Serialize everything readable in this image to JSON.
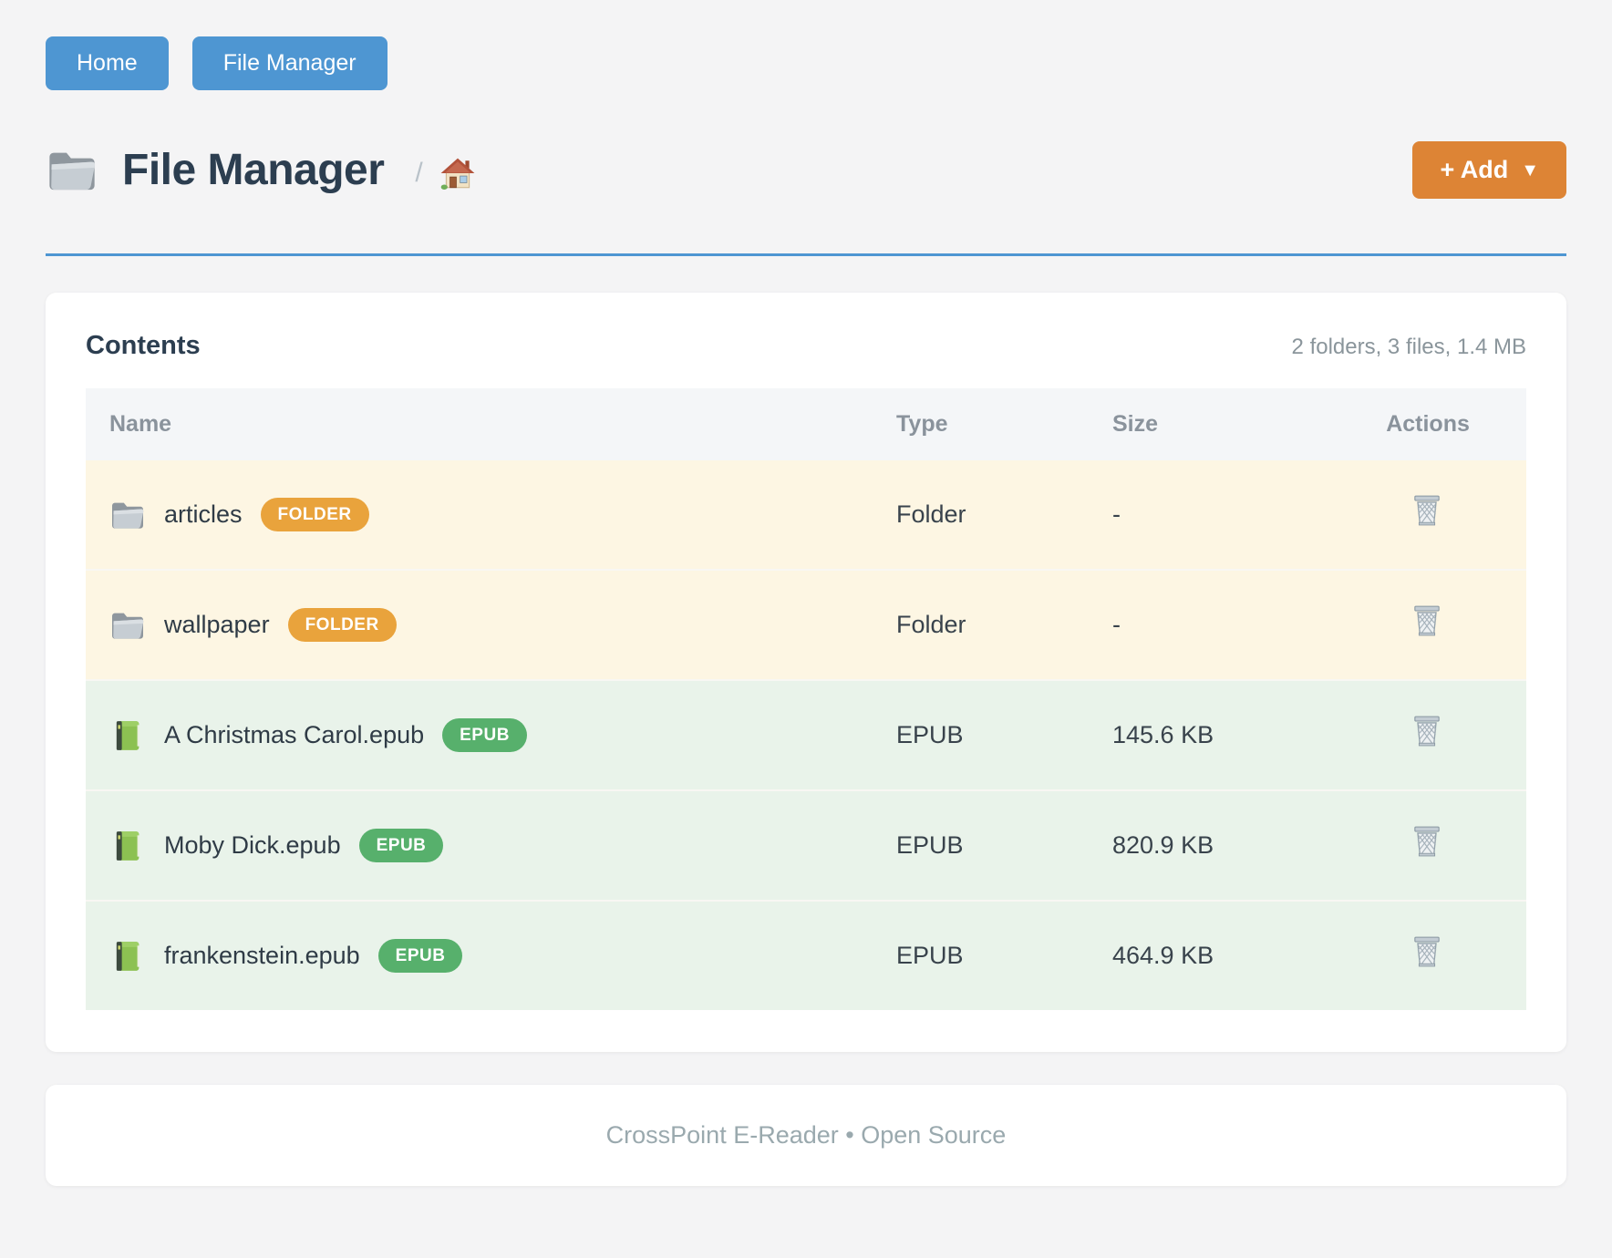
{
  "nav": {
    "items": [
      {
        "label": "Home"
      },
      {
        "label": "File Manager"
      }
    ]
  },
  "header": {
    "title": "File Manager",
    "breadcrumb_separator": "/",
    "add_button": {
      "label": "+ Add",
      "caret": "▼"
    }
  },
  "contents": {
    "title": "Contents",
    "summary": "2 folders, 3 files, 1.4 MB",
    "columns": [
      "Name",
      "Type",
      "Size",
      "Actions"
    ],
    "rows": [
      {
        "name": "articles",
        "badge": "FOLDER",
        "type": "Folder",
        "size": "-",
        "kind": "folder"
      },
      {
        "name": "wallpaper",
        "badge": "FOLDER",
        "type": "Folder",
        "size": "-",
        "kind": "folder"
      },
      {
        "name": "A Christmas Carol.epub",
        "badge": "EPUB",
        "type": "EPUB",
        "size": "145.6 KB",
        "kind": "epub"
      },
      {
        "name": "Moby Dick.epub",
        "badge": "EPUB",
        "type": "EPUB",
        "size": "820.9 KB",
        "kind": "epub"
      },
      {
        "name": "frankenstein.epub",
        "badge": "EPUB",
        "type": "EPUB",
        "size": "464.9 KB",
        "kind": "epub"
      }
    ]
  },
  "footer": {
    "text": "CrossPoint E-Reader • Open Source"
  },
  "colors": {
    "accent_blue": "#4e96d2",
    "accent_orange": "#dd8435",
    "badge_folder": "#e9a33c",
    "badge_epub": "#57b06c",
    "row_folder_bg": "#fdf6e3",
    "row_epub_bg": "#e9f3ea"
  },
  "icons": {
    "title": "folder-icon",
    "breadcrumb": "house-icon",
    "folder_row": "folder-icon",
    "epub_row": "green-book-icon",
    "action": "trash-icon"
  }
}
